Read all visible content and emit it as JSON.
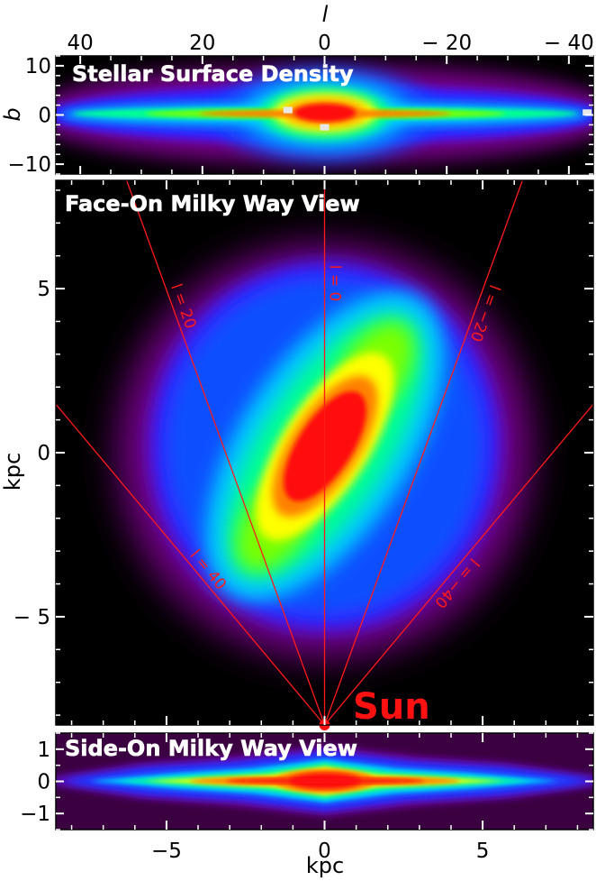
{
  "chart_data": [
    {
      "type": "heatmap",
      "title": "Stellar Surface Density",
      "xlabel": "l",
      "ylabel": "b",
      "xlim": [
        44,
        -44
      ],
      "ylim": [
        -12,
        12
      ],
      "xticks": [
        "40",
        "20",
        "0",
        "− 20",
        "− 40"
      ],
      "xtick_values": [
        40,
        20,
        0,
        -20,
        -40
      ],
      "yticks": [
        "10",
        "0",
        "−10"
      ],
      "ytick_values": [
        10,
        0,
        -10
      ],
      "masked_patches": [
        {
          "l": 6,
          "b": 1
        },
        {
          "l": 0,
          "b": -2.5
        },
        {
          "l": -43,
          "b": 0.5
        }
      ]
    },
    {
      "type": "heatmap",
      "title": "Face-On Milky Way View",
      "ylabel": "kpc",
      "xlim": [
        -8.5,
        8.5
      ],
      "ylim": [
        -8.3,
        8.3
      ],
      "yticks": [
        "5",
        "0",
        "− 5"
      ],
      "ytick_values": [
        5,
        0,
        -5
      ],
      "sun": {
        "label": "Sun",
        "x": 0,
        "y": -8.3
      },
      "sightlines": [
        {
          "label": "l = 40",
          "l": 40
        },
        {
          "label": "l = 20",
          "l": 20
        },
        {
          "label": "l = 0",
          "l": 0
        },
        {
          "label": "l = −20",
          "l": -20
        },
        {
          "label": "l = −40",
          "l": -40
        }
      ]
    },
    {
      "type": "heatmap",
      "title": "Side-On Milky Way View",
      "xlabel": "kpc",
      "xlim": [
        -8.5,
        8.5
      ],
      "ylim": [
        -1.5,
        1.5
      ],
      "xticks": [
        "−5",
        "0",
        "5"
      ],
      "xtick_values": [
        -5,
        0,
        5
      ],
      "yticks": [
        "1",
        "0",
        "−1"
      ],
      "ytick_values": [
        1,
        0,
        -1
      ]
    }
  ],
  "colors": {
    "background": "#000000",
    "sightline": "#ff1a1a",
    "sun": "#ff1111",
    "title_text": "#ffffff",
    "colormap": [
      "#000000",
      "#3a0040",
      "#7a0090",
      "#3a1cff",
      "#0a50ff",
      "#00c8ff",
      "#00ff90",
      "#7aff00",
      "#ffff00",
      "#ff8000",
      "#ff1010"
    ]
  }
}
